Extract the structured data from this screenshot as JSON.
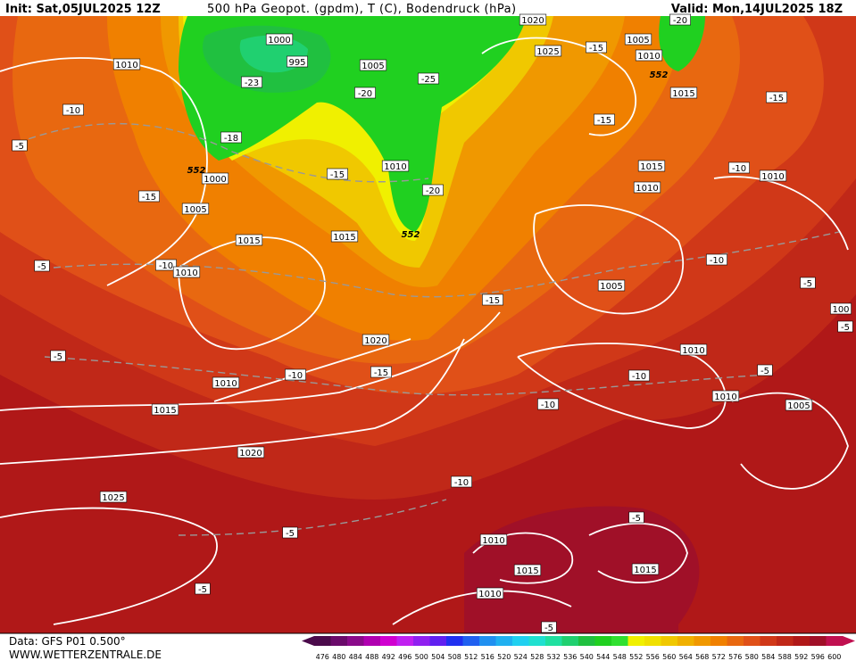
{
  "header": {
    "init": "Init: Sat,05JUL2025 12Z",
    "title": "500 hPa Geopot. (gpdm), T (C), Bodendruck (hPa)",
    "valid": "Valid: Mon,14JUL2025 18Z"
  },
  "footer": {
    "source": "Data: GFS P01 0.500°",
    "website": "WWW.WETTERZENTRALE.DE"
  },
  "colorbar": {
    "ticks": [
      476,
      480,
      484,
      488,
      492,
      496,
      500,
      504,
      508,
      512,
      516,
      520,
      524,
      528,
      532,
      536,
      540,
      544,
      548,
      552,
      556,
      560,
      564,
      568,
      572,
      576,
      580,
      584,
      588,
      592,
      596,
      600
    ],
    "colors": [
      "#4b0a4b",
      "#6a0a6a",
      "#8a0a8a",
      "#b000b0",
      "#d000d0",
      "#c020f0",
      "#9020f0",
      "#6020f0",
      "#2030f0",
      "#2060f0",
      "#2090f0",
      "#20b0f0",
      "#20d0f0",
      "#20e0d0",
      "#20e0a0",
      "#20d070",
      "#20c040",
      "#20d020",
      "#30e030",
      "#f0f000",
      "#f0e000",
      "#f0c800",
      "#f0b000",
      "#f09800",
      "#f08000",
      "#e86810",
      "#e05018",
      "#d03818",
      "#c02818",
      "#b01818",
      "#a01028",
      "#c01050"
    ]
  },
  "map_labels": [
    "1010",
    "1000",
    "995",
    "1005",
    "-25",
    "-20",
    "-23",
    "-18",
    "552",
    "1000",
    "1005",
    "-15",
    "-10",
    "-5",
    "-15",
    "1010",
    "-20",
    "552",
    "1015",
    "1015",
    "-10",
    "1010",
    "-5",
    "-5",
    "1010",
    "1015",
    "-10",
    "1020",
    "-15",
    "-15",
    "1020",
    "1025",
    "-15",
    "1005",
    "-20",
    "1010",
    "552",
    "1015",
    "-15",
    "-15",
    "1015",
    "-10",
    "1010",
    "1010",
    "-10",
    "1005",
    "-5",
    "100",
    "-5",
    "1010",
    "-10",
    "-5",
    "1010",
    "-10",
    "1005",
    "1020",
    "-10",
    "1025",
    "-5",
    "-5",
    "1010",
    "1015",
    "1015",
    "-5",
    "1010",
    "-5"
  ]
}
